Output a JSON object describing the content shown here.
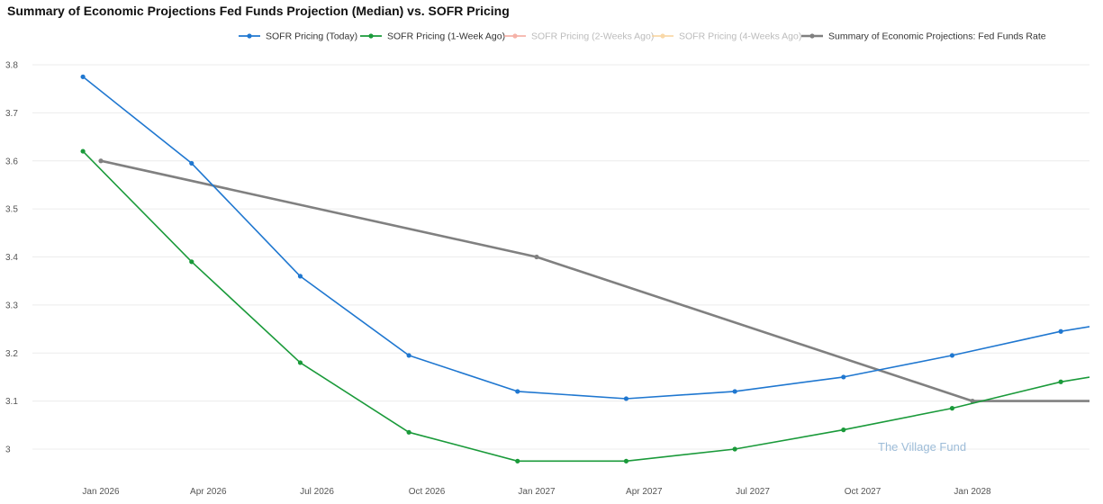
{
  "chart_data": {
    "type": "line",
    "title": "Summary of Economic Projections Fed Funds Projection (Median) vs. SOFR Pricing",
    "xlabel": "",
    "ylabel": "",
    "ylim": [
      2.95,
      3.85
    ],
    "y_ticks": [
      "3",
      "3.1",
      "3.2",
      "3.3",
      "3.4",
      "3.5",
      "3.6",
      "3.7",
      "3.8"
    ],
    "x_ticks": [
      {
        "label": "Jan 2026",
        "date": "2026-01-01"
      },
      {
        "label": "Apr 2026",
        "date": "2026-04-01"
      },
      {
        "label": "Jul 2026",
        "date": "2026-07-01"
      },
      {
        "label": "Oct 2026",
        "date": "2026-10-01"
      },
      {
        "label": "Jan 2027",
        "date": "2027-01-01"
      },
      {
        "label": "Apr 2027",
        "date": "2027-04-01"
      },
      {
        "label": "Jul 2027",
        "date": "2027-07-01"
      },
      {
        "label": "Oct 2027",
        "date": "2027-10-01"
      },
      {
        "label": "Jan 2028",
        "date": "2028-01-01"
      }
    ],
    "grid": true,
    "legend_position": "top",
    "watermark": "The Village Fund",
    "series": [
      {
        "name": "SOFR Pricing (Today)",
        "color": "#1f77d0",
        "active": true,
        "points": [
          {
            "x": "2025-12-17",
            "y": 3.775
          },
          {
            "x": "2026-03-18",
            "y": 3.595
          },
          {
            "x": "2026-06-17",
            "y": 3.36
          },
          {
            "x": "2026-09-16",
            "y": 3.195
          },
          {
            "x": "2026-12-16",
            "y": 3.12
          },
          {
            "x": "2027-03-17",
            "y": 3.105
          },
          {
            "x": "2027-06-16",
            "y": 3.12
          },
          {
            "x": "2027-09-15",
            "y": 3.15
          },
          {
            "x": "2027-12-15",
            "y": 3.195
          },
          {
            "x": "2028-03-15",
            "y": 3.245
          },
          {
            "x": "2028-05-10",
            "y": 3.268
          }
        ]
      },
      {
        "name": "SOFR Pricing (1-Week Ago)",
        "color": "#1a9a3a",
        "active": true,
        "points": [
          {
            "x": "2025-12-17",
            "y": 3.62
          },
          {
            "x": "2026-03-18",
            "y": 3.39
          },
          {
            "x": "2026-06-17",
            "y": 3.18
          },
          {
            "x": "2026-09-16",
            "y": 3.035
          },
          {
            "x": "2026-12-16",
            "y": 2.975
          },
          {
            "x": "2027-03-17",
            "y": 2.975
          },
          {
            "x": "2027-06-16",
            "y": 3.0
          },
          {
            "x": "2027-09-15",
            "y": 3.04
          },
          {
            "x": "2027-12-15",
            "y": 3.085
          },
          {
            "x": "2028-03-15",
            "y": 3.14
          },
          {
            "x": "2028-05-10",
            "y": 3.163
          }
        ]
      },
      {
        "name": "SOFR Pricing (2-Weeks Ago)",
        "color": "#f4a59a",
        "active": false,
        "points": []
      },
      {
        "name": "SOFR Pricing (4-Weeks Ago)",
        "color": "#f8d29a",
        "active": false,
        "points": []
      },
      {
        "name": "Summary of Economic Projections: Fed Funds Rate",
        "color": "#808080",
        "active": true,
        "points": [
          {
            "x": "2026-01-01",
            "y": 3.6
          },
          {
            "x": "2027-01-01",
            "y": 3.4
          },
          {
            "x": "2028-01-01",
            "y": 3.1
          },
          {
            "x": "2028-05-10",
            "y": 3.1
          }
        ]
      }
    ]
  }
}
